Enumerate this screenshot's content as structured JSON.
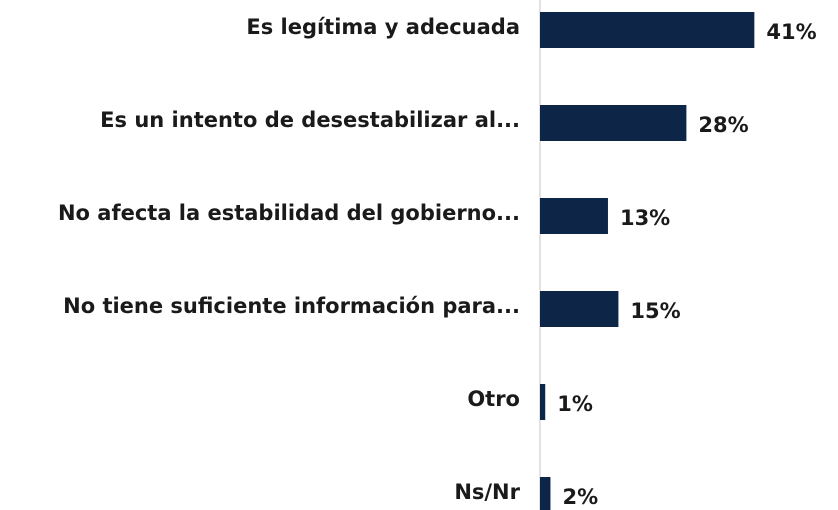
{
  "chart_data": {
    "type": "bar",
    "orientation": "horizontal",
    "categories": [
      "Es legítima y adecuada",
      "Es un intento de desestabilizar al...",
      "No afecta la estabilidad del gobierno...",
      "No tiene suficiente información para...",
      "Otro",
      "Ns/Nr"
    ],
    "values": [
      41,
      28,
      13,
      15,
      1,
      2
    ],
    "value_labels": [
      "41%",
      "28%",
      "13%",
      "15%",
      "1%",
      "2%"
    ],
    "color": "#0d2647",
    "xlim": [
      0,
      57
    ]
  }
}
